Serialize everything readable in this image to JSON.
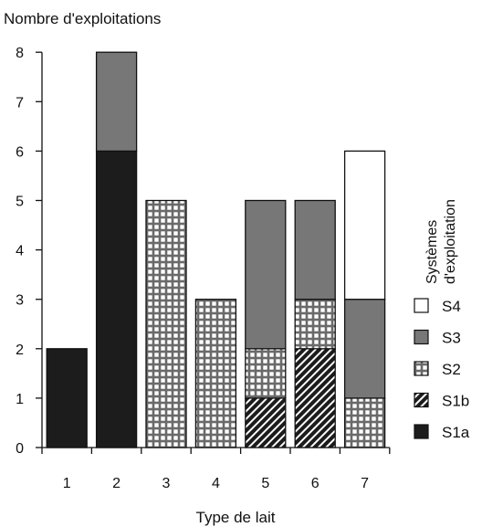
{
  "chart_data": {
    "type": "bar",
    "stacked": true,
    "ylabel": "Nombre d'exploitations",
    "xlabel": "Type de lait",
    "categories": [
      "1",
      "2",
      "3",
      "4",
      "5",
      "6",
      "7"
    ],
    "yticks": [
      "0",
      "1",
      "2",
      "3",
      "4",
      "5",
      "6",
      "7",
      "8"
    ],
    "ylim": [
      0,
      8
    ],
    "grid": false,
    "legend_title": "Systèmes\nd'exploitation",
    "legend_position": "right",
    "series": [
      {
        "name": "S1a",
        "values": [
          2,
          6,
          0,
          0,
          0,
          0,
          0
        ],
        "color": "#1c1c1c",
        "pattern": "solid"
      },
      {
        "name": "S1b",
        "values": [
          0,
          0,
          0,
          0,
          1,
          2,
          0
        ],
        "color": "#1c1c1c",
        "pattern": "diagonal-hatch"
      },
      {
        "name": "S2",
        "values": [
          0,
          0,
          5,
          3,
          1,
          1,
          1
        ],
        "color": "#6a6a6a",
        "pattern": "grid-checker"
      },
      {
        "name": "S3",
        "values": [
          0,
          2,
          0,
          0,
          3,
          2,
          2
        ],
        "color": "#777777",
        "pattern": "solid"
      },
      {
        "name": "S4",
        "values": [
          0,
          0,
          0,
          0,
          0,
          0,
          3
        ],
        "color": "#ffffff",
        "pattern": "solid"
      }
    ],
    "legend_order": [
      "S4",
      "S3",
      "S2",
      "S1b",
      "S1a"
    ]
  }
}
